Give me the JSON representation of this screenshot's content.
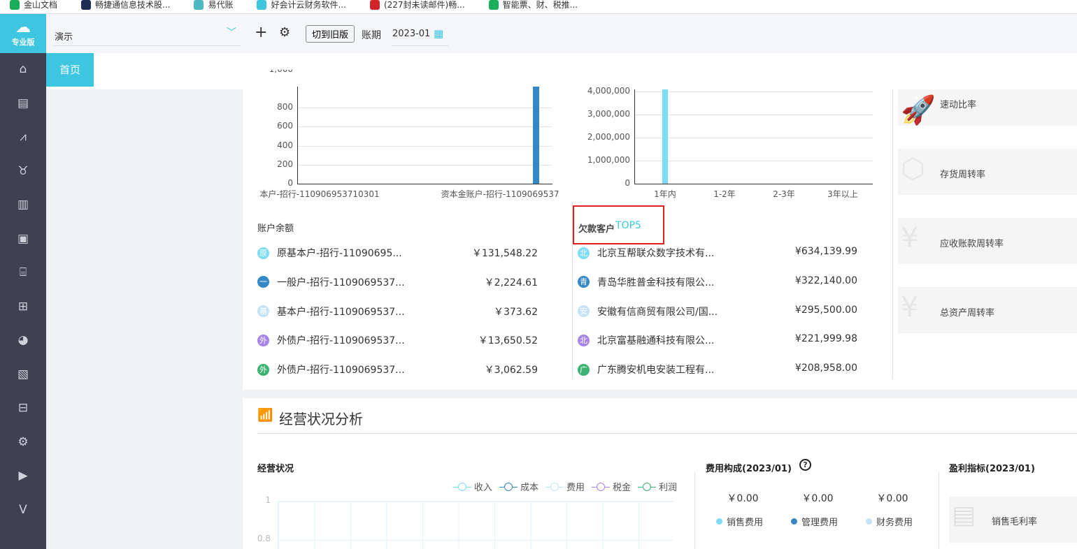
{
  "bookmarks": [
    {
      "label": "金山文档",
      "color": "#1aad5a"
    },
    {
      "label": "畅捷通信息技术股...",
      "color": "#1f2d54"
    },
    {
      "label": "易代账",
      "color": "#4cb8c4"
    },
    {
      "label": "好会计云财务软件...",
      "color": "#3ec6e0"
    },
    {
      "label": "(227封未读邮件)畅...",
      "color": "#d4232a"
    },
    {
      "label": "智能票、财、税推...",
      "color": "#1aad5a"
    }
  ],
  "app": {
    "edition": "专业版",
    "company": "演示",
    "switch_old": "切到旧版",
    "period_label": "账期",
    "period_value": "2023-01"
  },
  "tabs": [
    {
      "label": "首页"
    }
  ],
  "sidebar_icons": [
    "home-icon",
    "voucher-icon",
    "chart-icon",
    "money-bag-icon",
    "ledger-icon",
    "report-icon",
    "store-icon",
    "cashier-icon",
    "tax-icon",
    "invoice-icon",
    "archive-icon",
    "settings-icon",
    "video-icon",
    "v-logo-icon"
  ],
  "bank_chart": {
    "type": "bar",
    "yticks": [
      "800",
      "600",
      "400",
      "200",
      "0"
    ],
    "ytop_partial": "1,000",
    "categories": [
      "本户-招行-110906953710301",
      "资本金账户-招行-1109069537"
    ],
    "values": [
      0,
      1000
    ],
    "color": "#3588c8"
  },
  "aging_chart": {
    "type": "bar",
    "yticks": [
      "4,000,000",
      "3,000,000",
      "2,000,000",
      "1,000,000",
      "0"
    ],
    "categories": [
      "1年内",
      "1-2年",
      "2-3年",
      "3年以上"
    ],
    "values": [
      4000000,
      0,
      0,
      0
    ],
    "color": "#7edcf7"
  },
  "accounts": {
    "title": "账户余额",
    "items": [
      {
        "badge": "原",
        "color": "#7edcf7",
        "name": "原基本户-招行-11090695...",
        "amount": "￥131,548.22"
      },
      {
        "badge": "一",
        "color": "#3588c8",
        "name": "一般户-招行-1109069537...",
        "amount": "￥2,224.61"
      },
      {
        "badge": "基",
        "color": "#c5e3f6",
        "name": "基本户-招行-1109069537...",
        "amount": "￥373.62"
      },
      {
        "badge": "外",
        "color": "#a783e8",
        "name": "外债户-招行-1109069537...",
        "amount": "￥13,650.52"
      },
      {
        "badge": "外",
        "color": "#3cb371",
        "name": "外债户-招行-1109069537...",
        "amount": "￥3,062.59"
      }
    ]
  },
  "debtors": {
    "title": "欠款客户",
    "title_accent": "TOP5",
    "items": [
      {
        "badge": "北",
        "color": "#7edcf7",
        "name": "北京互帮联众数字技术有...",
        "amount": "¥634,139.99"
      },
      {
        "badge": "青",
        "color": "#3588c8",
        "name": "青岛华胜普金科技有限公...",
        "amount": "¥322,140.00"
      },
      {
        "badge": "安",
        "color": "#c5e3f6",
        "name": "安徽有信商贸有限公司/国...",
        "amount": "¥295,500.00"
      },
      {
        "badge": "北",
        "color": "#a783e8",
        "name": "北京富基融通科技有限公...",
        "amount": "¥221,999.98"
      },
      {
        "badge": "广",
        "color": "#3cb371",
        "name": "广东腾安机电安装工程有...",
        "amount": "¥208,958.00"
      }
    ]
  },
  "ratios": [
    {
      "label": "速动比率",
      "icon": "rocket-icon"
    },
    {
      "label": "存货周转率",
      "icon": "box-icon"
    },
    {
      "label": "应收账款周转率",
      "icon": "yen-doc-icon"
    },
    {
      "label": "总资产周转率",
      "icon": "yen-doc-icon"
    }
  ],
  "analysis": {
    "title": "经营状况分析",
    "ops": {
      "title": "经营状况",
      "legend": [
        {
          "name": "收入",
          "color": "#7edcf7"
        },
        {
          "name": "成本",
          "color": "#3588c8"
        },
        {
          "name": "费用",
          "color": "#c5e3f6"
        },
        {
          "name": "税金",
          "color": "#a783e8"
        },
        {
          "name": "利润",
          "color": "#3cb371"
        }
      ],
      "yticks": [
        "1",
        "0.8"
      ]
    },
    "costs": {
      "title": "费用构成(2023/01)",
      "items": [
        {
          "amount": "￥0.00",
          "label": "销售费用",
          "color": "#7edcf7"
        },
        {
          "amount": "￥0.00",
          "label": "管理费用",
          "color": "#3588c8"
        },
        {
          "amount": "￥0.00",
          "label": "财务费用",
          "color": "#c5e3f6"
        }
      ]
    },
    "profit": {
      "title": "盈利指标(2023/01)",
      "tile": "销售毛利率"
    }
  }
}
